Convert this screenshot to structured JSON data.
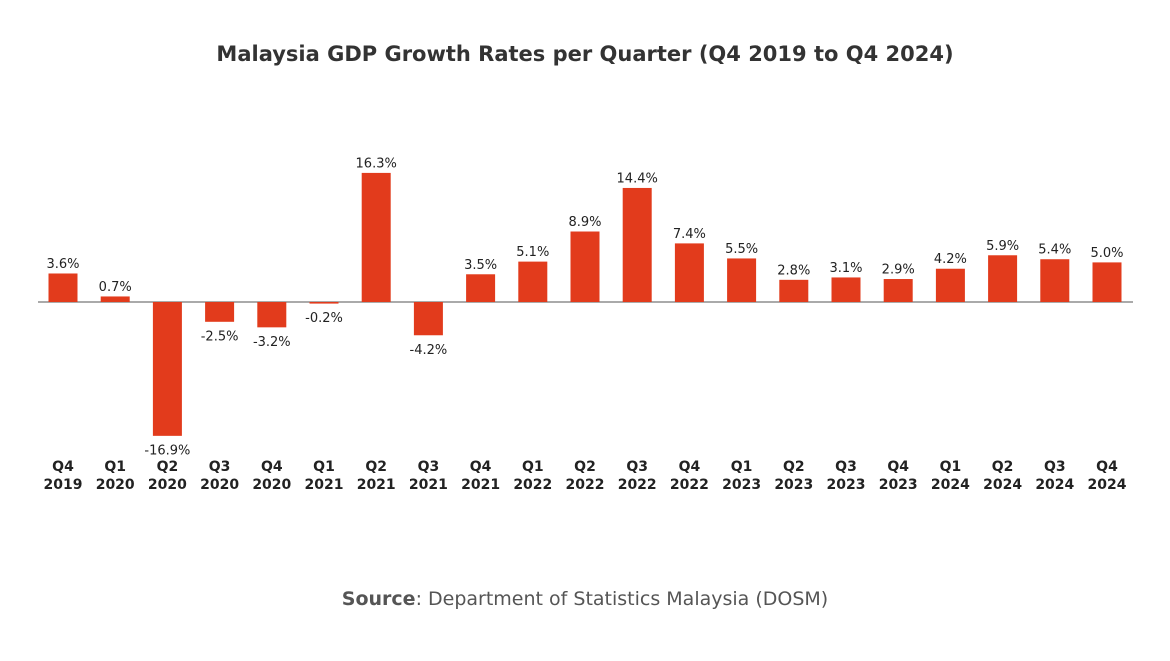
{
  "chart_data": {
    "type": "bar",
    "title": "Malaysia GDP Growth Rates per Quarter (Q4 2019 to Q4 2024)",
    "categories": [
      "Q4 2019",
      "Q1 2020",
      "Q2 2020",
      "Q3 2020",
      "Q4 2020",
      "Q1 2021",
      "Q2 2021",
      "Q3 2021",
      "Q4 2021",
      "Q1 2022",
      "Q2 2022",
      "Q3 2022",
      "Q4 2022",
      "Q1 2023",
      "Q2 2023",
      "Q3 2023",
      "Q4 2023",
      "Q1 2024",
      "Q2 2024",
      "Q3 2024",
      "Q4 2024"
    ],
    "values": [
      3.6,
      0.7,
      -16.9,
      -2.5,
      -3.2,
      -0.2,
      16.3,
      -4.2,
      3.5,
      5.1,
      8.9,
      14.4,
      7.4,
      5.5,
      2.8,
      3.1,
      2.9,
      4.2,
      5.9,
      5.4,
      5.0
    ],
    "value_labels": [
      "3.6%",
      "0.7%",
      "-16.9%",
      "-2.5%",
      "-3.2%",
      "-0.2%",
      "16.3%",
      "-4.2%",
      "3.5%",
      "5.1%",
      "8.9%",
      "14.4%",
      "7.4%",
      "5.5%",
      "2.8%",
      "3.1%",
      "2.9%",
      "4.2%",
      "5.9%",
      "5.4%",
      "5.0%"
    ],
    "color": "#e23b1c",
    "source_label": "Source",
    "source_text": ": Department of Statistics Malaysia (DOSM)"
  }
}
